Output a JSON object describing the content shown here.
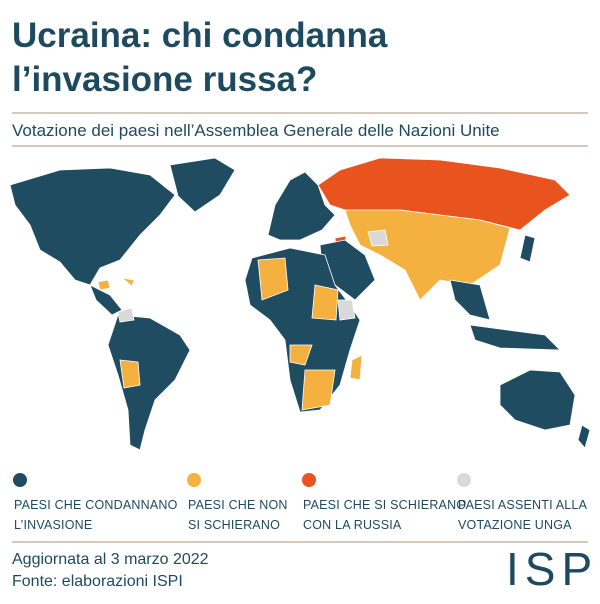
{
  "header": {
    "title": [
      "Ucraina: chi condanna",
      "l’invasione russa?"
    ],
    "subtitle": "Votazione dei paesi nell’Assemblea Generale delle Nazioni Unite"
  },
  "legend": [
    {
      "label": [
        "PAESI CHE CONDANNANO",
        "L’INVASIONE"
      ],
      "color": "#1f4c61"
    },
    {
      "label": [
        "PAESI CHE NON",
        "SI SCHIERANO"
      ],
      "color": "#f4b13f"
    },
    {
      "label": [
        "PAESI CHE SI SCHIERANO",
        "CON LA RUSSIA"
      ],
      "color": "#e9531d"
    },
    {
      "label": [
        "PAESI ASSENTI ALLA",
        "VOTAZIONE UNGA"
      ],
      "color": "#d9d9d9"
    }
  ],
  "footer": {
    "lines": [
      "Aggiornata al 3 marzo 2022",
      "Fonte: elaborazioni ISPI"
    ],
    "logo": "ISPI"
  }
}
